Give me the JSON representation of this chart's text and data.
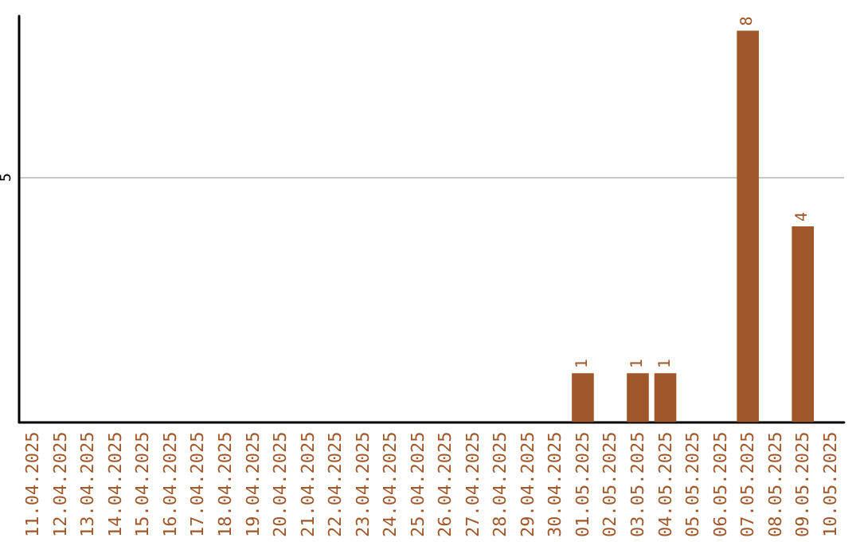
{
  "chart_data": {
    "type": "bar",
    "categories": [
      "11.04.2025",
      "12.04.2025",
      "13.04.2025",
      "14.04.2025",
      "15.04.2025",
      "16.04.2025",
      "17.04.2025",
      "18.04.2025",
      "19.04.2025",
      "20.04.2025",
      "21.04.2025",
      "22.04.2025",
      "23.04.2025",
      "24.04.2025",
      "25.04.2025",
      "26.04.2025",
      "27.04.2025",
      "28.04.2025",
      "29.04.2025",
      "30.04.2025",
      "01.05.2025",
      "02.05.2025",
      "03.05.2025",
      "04.05.2025",
      "05.05.2025",
      "06.05.2025",
      "07.05.2025",
      "08.05.2025",
      "09.05.2025",
      "10.05.2025"
    ],
    "values": [
      null,
      null,
      null,
      null,
      null,
      null,
      null,
      null,
      null,
      null,
      null,
      null,
      null,
      null,
      null,
      null,
      null,
      null,
      null,
      null,
      1,
      null,
      1,
      1,
      null,
      null,
      8,
      null,
      4,
      null
    ],
    "data_labels": true,
    "color": "#a0572a",
    "ylim": [
      0,
      8.3
    ],
    "yticks": [
      5
    ],
    "grid": "y"
  }
}
